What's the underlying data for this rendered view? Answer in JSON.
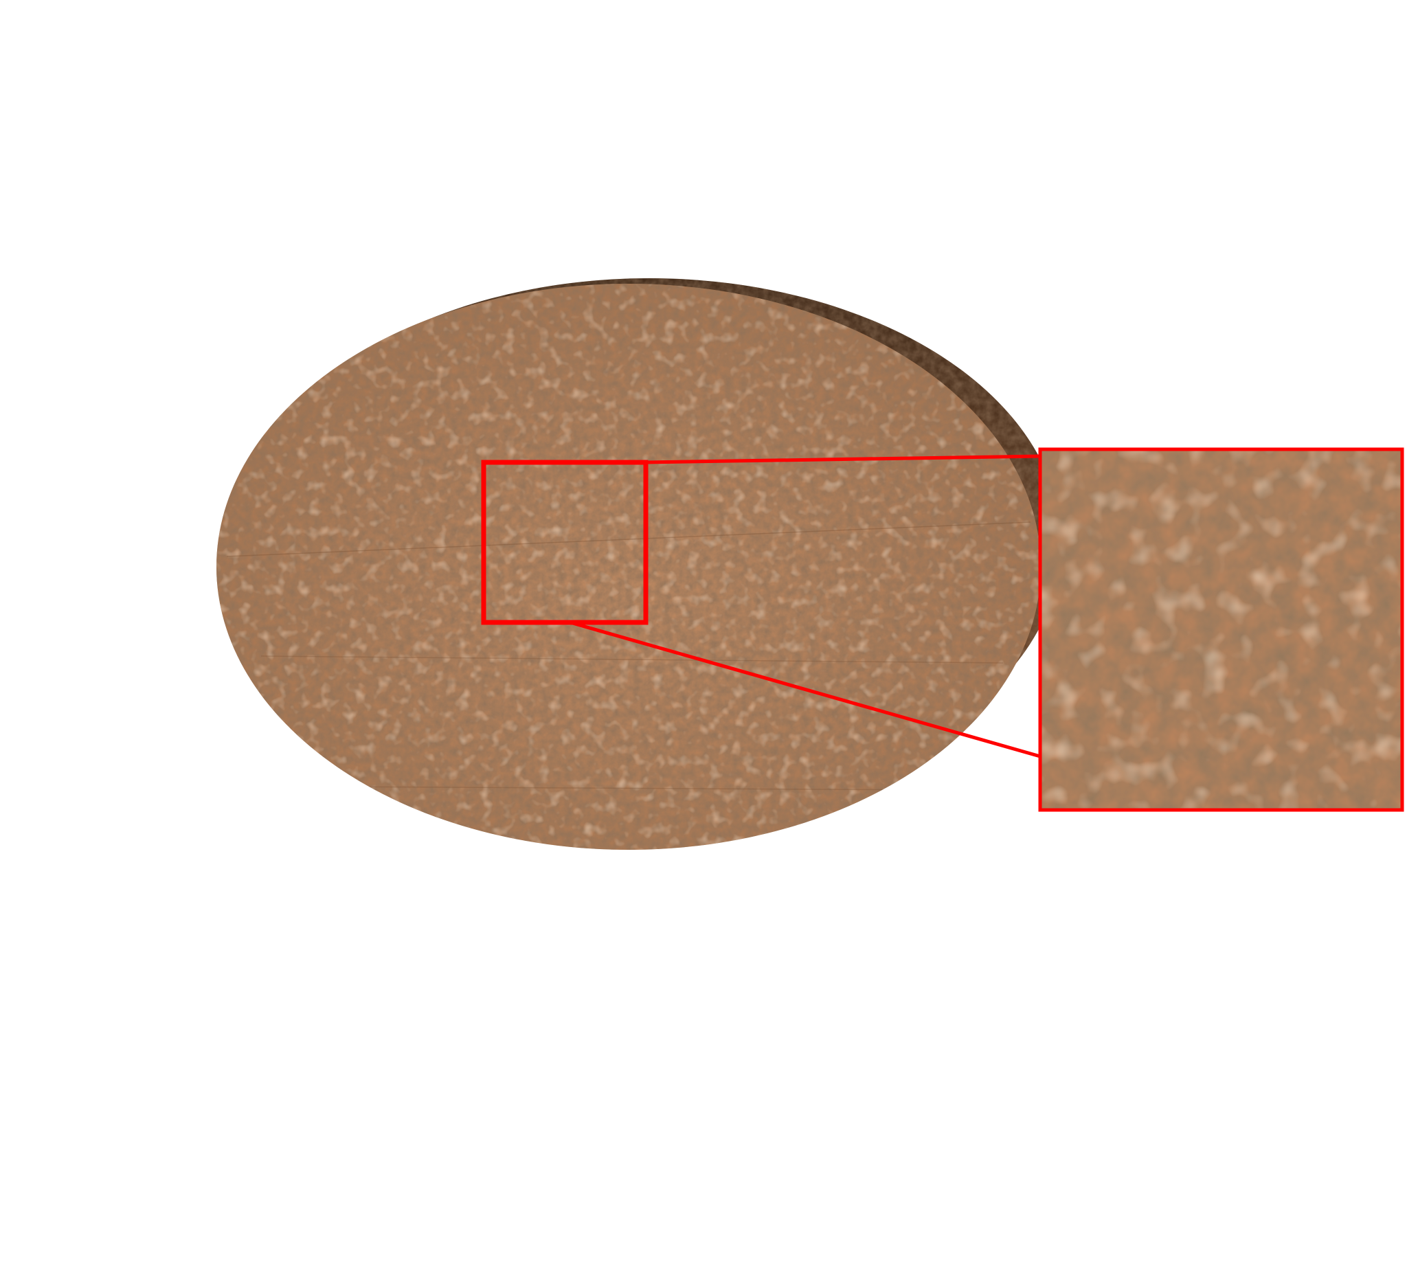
{
  "figure": {
    "subject": "textured-disc-render",
    "background_color": "#ffffff",
    "surface_color": "#b9835c",
    "surface_shadow_color": "#6b452a",
    "highlight_color": "#ff0000"
  }
}
